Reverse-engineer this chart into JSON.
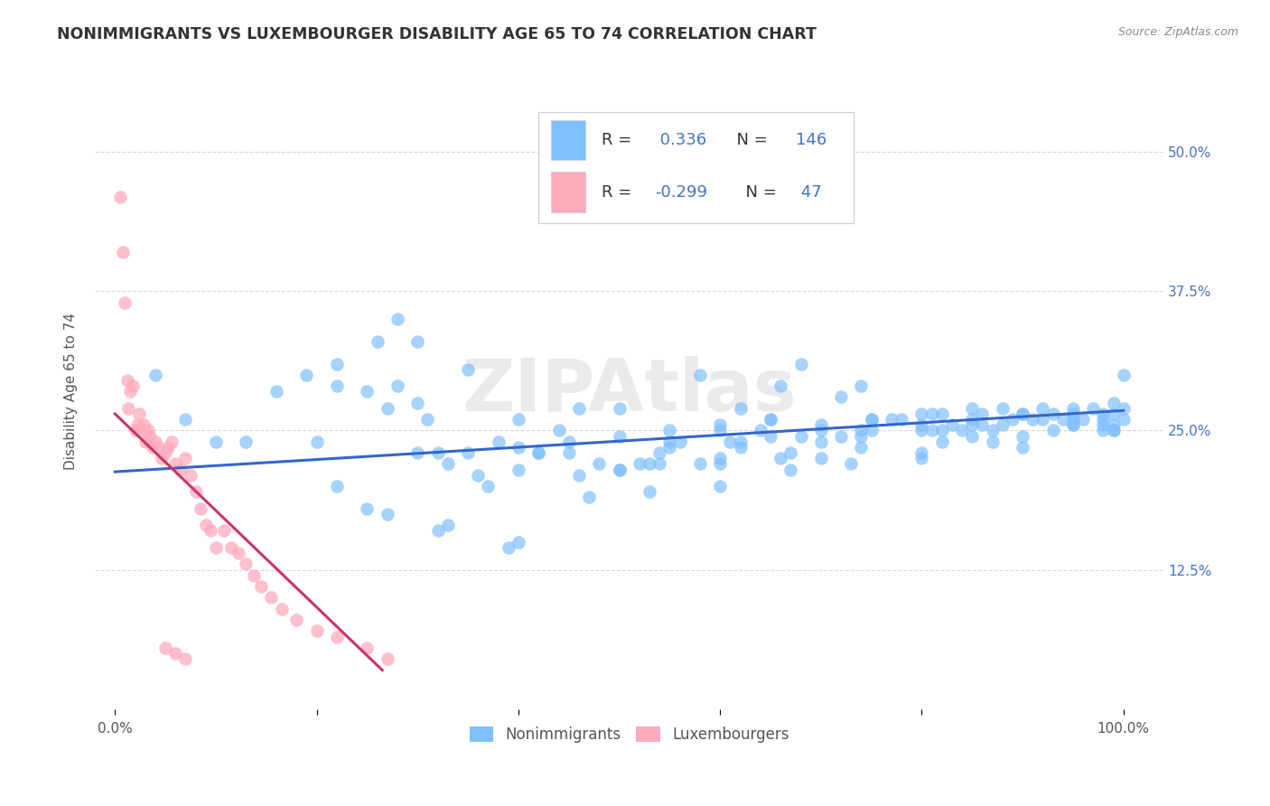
{
  "title": "NONIMMIGRANTS VS LUXEMBOURGER DISABILITY AGE 65 TO 74 CORRELATION CHART",
  "source": "Source: ZipAtlas.com",
  "ylabel": "Disability Age 65 to 74",
  "xlim": [
    -0.02,
    1.04
  ],
  "ylim": [
    0.0,
    0.57
  ],
  "blue_R": 0.336,
  "blue_N": 146,
  "pink_R": -0.299,
  "pink_N": 47,
  "blue_color": "#7fbfff",
  "pink_color": "#ffaabb",
  "blue_line_color": "#3366cc",
  "pink_line_color": "#cc3366",
  "watermark": "ZIPAtlas",
  "background_color": "#ffffff",
  "grid_color": "#cccccc",
  "title_color": "#333333",
  "axis_label_color": "#555555",
  "right_tick_color": "#4472c4",
  "legend_num_color": "#4472c4",
  "blue_scatter_x": [
    0.04,
    0.07,
    0.1,
    0.13,
    0.16,
    0.19,
    0.22,
    0.22,
    0.25,
    0.26,
    0.27,
    0.28,
    0.3,
    0.31,
    0.32,
    0.33,
    0.35,
    0.36,
    0.37,
    0.38,
    0.4,
    0.42,
    0.44,
    0.46,
    0.48,
    0.5,
    0.52,
    0.54,
    0.56,
    0.58,
    0.6,
    0.61,
    0.62,
    0.64,
    0.65,
    0.66,
    0.68,
    0.7,
    0.72,
    0.74,
    0.75,
    0.77,
    0.78,
    0.8,
    0.81,
    0.82,
    0.83,
    0.84,
    0.85,
    0.86,
    0.87,
    0.88,
    0.89,
    0.9,
    0.91,
    0.92,
    0.93,
    0.94,
    0.95,
    0.96,
    0.97,
    0.98,
    0.99,
    0.99,
    1.0,
    1.0,
    1.0,
    0.28,
    0.3,
    0.35,
    0.4,
    0.45,
    0.5,
    0.55,
    0.6,
    0.65,
    0.7,
    0.75,
    0.8,
    0.85,
    0.9,
    0.95,
    0.99,
    0.22,
    0.27,
    0.33,
    0.4,
    0.47,
    0.53,
    0.6,
    0.67,
    0.73,
    0.8,
    0.87,
    0.93,
    0.98,
    0.25,
    0.32,
    0.39,
    0.46,
    0.53,
    0.6,
    0.67,
    0.74,
    0.81,
    0.88,
    0.95,
    0.99,
    0.4,
    0.5,
    0.6,
    0.7,
    0.8,
    0.9,
    0.99,
    0.55,
    0.65,
    0.75,
    0.85,
    0.95,
    0.2,
    0.3,
    0.42,
    0.54,
    0.62,
    0.68,
    0.74,
    0.8,
    0.86,
    0.92,
    0.98,
    0.5,
    0.58,
    0.66,
    0.74,
    0.82,
    0.9,
    0.98,
    0.45,
    0.55,
    0.7,
    0.85,
    0.95,
    0.62,
    0.72,
    0.82
  ],
  "blue_scatter_y": [
    0.3,
    0.26,
    0.24,
    0.24,
    0.285,
    0.3,
    0.29,
    0.31,
    0.285,
    0.33,
    0.27,
    0.29,
    0.275,
    0.26,
    0.23,
    0.22,
    0.23,
    0.21,
    0.2,
    0.24,
    0.26,
    0.23,
    0.25,
    0.27,
    0.22,
    0.27,
    0.22,
    0.23,
    0.24,
    0.3,
    0.25,
    0.24,
    0.27,
    0.25,
    0.26,
    0.29,
    0.31,
    0.25,
    0.28,
    0.29,
    0.26,
    0.26,
    0.26,
    0.255,
    0.265,
    0.265,
    0.255,
    0.25,
    0.26,
    0.265,
    0.25,
    0.27,
    0.26,
    0.265,
    0.26,
    0.27,
    0.265,
    0.26,
    0.255,
    0.26,
    0.27,
    0.255,
    0.265,
    0.25,
    0.26,
    0.27,
    0.3,
    0.35,
    0.33,
    0.305,
    0.235,
    0.24,
    0.245,
    0.25,
    0.255,
    0.26,
    0.255,
    0.26,
    0.265,
    0.27,
    0.265,
    0.27,
    0.275,
    0.2,
    0.175,
    0.165,
    0.15,
    0.19,
    0.195,
    0.2,
    0.215,
    0.22,
    0.225,
    0.24,
    0.25,
    0.26,
    0.18,
    0.16,
    0.145,
    0.21,
    0.22,
    0.225,
    0.23,
    0.245,
    0.25,
    0.255,
    0.26,
    0.255,
    0.215,
    0.215,
    0.22,
    0.225,
    0.23,
    0.235,
    0.25,
    0.24,
    0.245,
    0.25,
    0.255,
    0.265,
    0.24,
    0.23,
    0.23,
    0.22,
    0.235,
    0.245,
    0.25,
    0.25,
    0.255,
    0.26,
    0.265,
    0.215,
    0.22,
    0.225,
    0.235,
    0.24,
    0.245,
    0.25,
    0.23,
    0.235,
    0.24,
    0.245,
    0.255,
    0.24,
    0.245,
    0.25
  ],
  "pink_scatter_x": [
    0.005,
    0.008,
    0.01,
    0.012,
    0.013,
    0.015,
    0.018,
    0.02,
    0.022,
    0.024,
    0.025,
    0.028,
    0.03,
    0.033,
    0.035,
    0.037,
    0.04,
    0.043,
    0.046,
    0.05,
    0.053,
    0.056,
    0.06,
    0.065,
    0.07,
    0.075,
    0.08,
    0.085,
    0.09,
    0.095,
    0.1,
    0.108,
    0.115,
    0.122,
    0.13,
    0.138,
    0.145,
    0.155,
    0.165,
    0.18,
    0.2,
    0.22,
    0.25,
    0.27,
    0.05,
    0.06,
    0.07
  ],
  "pink_scatter_y": [
    0.46,
    0.41,
    0.365,
    0.295,
    0.27,
    0.285,
    0.29,
    0.25,
    0.255,
    0.265,
    0.25,
    0.255,
    0.24,
    0.25,
    0.245,
    0.235,
    0.24,
    0.235,
    0.225,
    0.23,
    0.235,
    0.24,
    0.22,
    0.215,
    0.225,
    0.21,
    0.195,
    0.18,
    0.165,
    0.16,
    0.145,
    0.16,
    0.145,
    0.14,
    0.13,
    0.12,
    0.11,
    0.1,
    0.09,
    0.08,
    0.07,
    0.065,
    0.055,
    0.045,
    0.055,
    0.05,
    0.045
  ],
  "blue_trend": [
    0.0,
    1.0,
    0.213,
    0.268
  ],
  "pink_trend": [
    0.0,
    0.265,
    0.265,
    0.035
  ]
}
